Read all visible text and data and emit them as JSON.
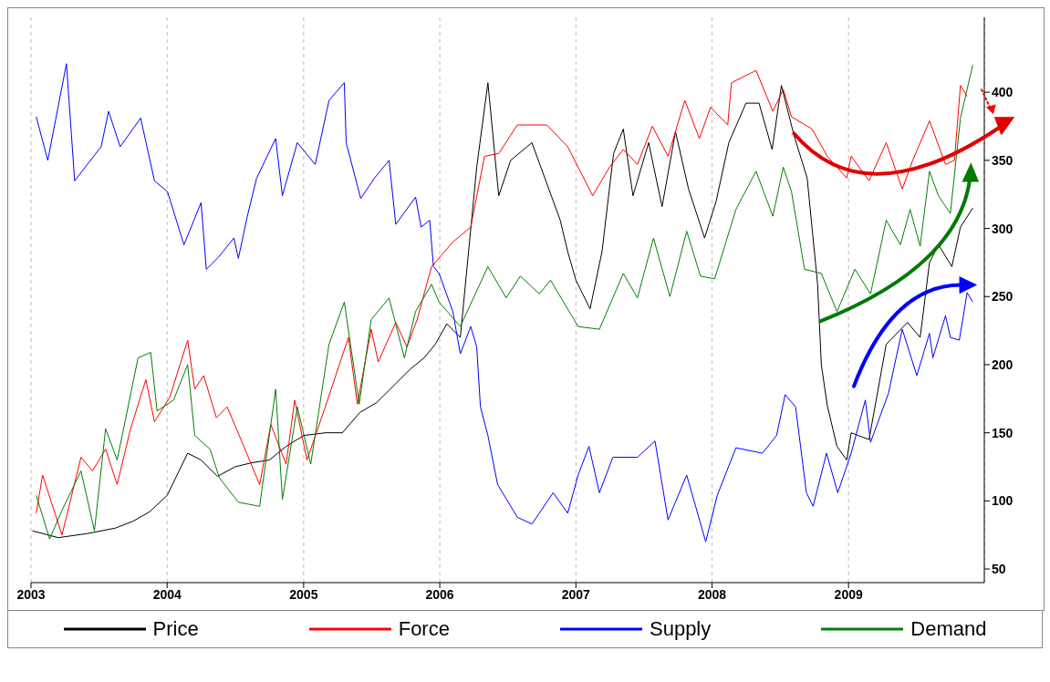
{
  "chart_data": {
    "type": "line",
    "xlim": [
      "2003-01-01",
      "2009-12-31"
    ],
    "xticks": [
      "2003",
      "2004",
      "2005",
      "2006",
      "2007",
      "2008",
      "2009"
    ],
    "ylim": [
      40,
      455
    ],
    "yticks": [
      50,
      100,
      150,
      200,
      250,
      300,
      350,
      400
    ],
    "grid": "x",
    "legend": "bottom",
    "line_style": "solid",
    "series": [
      {
        "name": "Price",
        "color": "#000000",
        "x": [
          "2003-01-05",
          "2003-03-15",
          "2003-06-01",
          "2003-08-15",
          "2003-10-01",
          "2003-11-15",
          "2004-01-01",
          "2004-02-25",
          "2004-04-01",
          "2004-05-15",
          "2004-07-01",
          "2004-08-15",
          "2004-10-01",
          "2004-11-15",
          "2005-01-01",
          "2005-03-01",
          "2005-04-15",
          "2005-06-01",
          "2005-07-15",
          "2005-09-01",
          "2005-10-15",
          "2005-11-20",
          "2005-12-20",
          "2006-01-20",
          "2006-02-25",
          "2006-04-10",
          "2006-05-10",
          "2006-06-08",
          "2006-07-10",
          "2006-09-05",
          "2006-11-20",
          "2006-12-10",
          "2007-01-01",
          "2007-02-08",
          "2007-03-12",
          "2007-04-12",
          "2007-05-08",
          "2007-06-03",
          "2007-07-15",
          "2007-08-20",
          "2007-09-25",
          "2007-10-30",
          "2007-12-12",
          "2008-01-12",
          "2008-02-15",
          "2008-04-01",
          "2008-05-06",
          "2008-06-10",
          "2008-07-05",
          "2008-08-08",
          "2008-09-12",
          "2008-10-10",
          "2008-10-20",
          "2008-11-05",
          "2008-12-01",
          "2008-12-27",
          "2009-01-08",
          "2009-02-25",
          "2009-04-12",
          "2009-06-08",
          "2009-07-12",
          "2009-08-06",
          "2009-08-30",
          "2009-10-05",
          "2009-10-28",
          "2009-11-30"
        ],
        "values": [
          78,
          73,
          76,
          80,
          85,
          92,
          104,
          135,
          130,
          118,
          125,
          128,
          130,
          140,
          148,
          150,
          150,
          165,
          172,
          185,
          197,
          205,
          215,
          230,
          220,
          345,
          407,
          324,
          350,
          363,
          306,
          283,
          262,
          241,
          283,
          355,
          373,
          324,
          363,
          316,
          371,
          329,
          293,
          320,
          363,
          392,
          392,
          358,
          405,
          368,
          337,
          259,
          200,
          170,
          140,
          130,
          150,
          145,
          215,
          231,
          220,
          275,
          288,
          272,
          301,
          315
        ]
      },
      {
        "name": "Force",
        "color": "#ff0000",
        "x": [
          "2003-01-15",
          "2003-02-01",
          "2003-03-25",
          "2003-05-15",
          "2003-06-15",
          "2003-07-20",
          "2003-08-20",
          "2003-09-25",
          "2003-11-05",
          "2003-11-28",
          "2004-01-08",
          "2004-02-25",
          "2004-03-15",
          "2004-04-08",
          "2004-05-12",
          "2004-06-10",
          "2004-07-20",
          "2004-09-05",
          "2004-10-05",
          "2004-11-15",
          "2004-12-08",
          "2005-01-10",
          "2005-02-28",
          "2005-05-01",
          "2005-05-25",
          "2005-07-01",
          "2005-07-20",
          "2005-09-05",
          "2005-10-05",
          "2005-11-01",
          "2005-12-10",
          "2006-02-05",
          "2006-03-25",
          "2006-05-01",
          "2006-06-08",
          "2006-07-28",
          "2006-10-15",
          "2006-12-10",
          "2007-02-15",
          "2007-04-01",
          "2007-05-08",
          "2007-06-15",
          "2007-07-25",
          "2007-09-05",
          "2007-10-20",
          "2007-11-28",
          "2007-12-28",
          "2008-02-12",
          "2008-02-22",
          "2008-04-28",
          "2008-06-12",
          "2008-07-10",
          "2008-08-01",
          "2008-09-25",
          "2008-11-05",
          "2008-12-27",
          "2009-01-08",
          "2009-02-25",
          "2009-04-12",
          "2009-05-25",
          "2009-06-22",
          "2009-08-06",
          "2009-09-18",
          "2009-10-12",
          "2009-10-28",
          "2009-11-15"
        ],
        "values": [
          91,
          119,
          75,
          132,
          122,
          138,
          112,
          153,
          189,
          158,
          176,
          218,
          182,
          192,
          161,
          169,
          143,
          112,
          156,
          127,
          174,
          130,
          169,
          220,
          171,
          226,
          202,
          231,
          213,
          233,
          272,
          290,
          301,
          353,
          355,
          376,
          376,
          360,
          324,
          345,
          358,
          347,
          375,
          353,
          394,
          366,
          389,
          376,
          407,
          416,
          386,
          402,
          382,
          373,
          353,
          337,
          353,
          335,
          363,
          329,
          350,
          379,
          347,
          350,
          405,
          397
        ]
      },
      {
        "name": "Supply",
        "color": "#0000ff",
        "x": [
          "2003-01-15",
          "2003-02-15",
          "2003-04-06",
          "2003-04-28",
          "2003-07-08",
          "2003-07-28",
          "2003-08-28",
          "2003-10-22",
          "2003-11-28",
          "2004-01-02",
          "2004-02-15",
          "2004-04-01",
          "2004-04-15",
          "2004-05-18",
          "2004-06-28",
          "2004-07-10",
          "2004-08-03",
          "2004-08-28",
          "2004-10-18",
          "2004-11-05",
          "2004-12-15",
          "2005-02-01",
          "2005-03-10",
          "2005-04-20",
          "2005-04-25",
          "2005-06-03",
          "2005-07-10",
          "2005-08-18",
          "2005-09-05",
          "2005-10-28",
          "2005-11-12",
          "2005-12-05",
          "2005-12-15",
          "2005-12-30",
          "2006-02-05",
          "2006-02-25",
          "2006-03-25",
          "2006-04-10",
          "2006-04-20",
          "2006-05-10",
          "2006-06-05",
          "2006-07-28",
          "2006-09-05",
          "2006-11-01",
          "2006-12-10",
          "2007-01-07",
          "2007-02-05",
          "2007-03-05",
          "2007-04-10",
          "2007-06-15",
          "2007-08-01",
          "2007-09-05",
          "2007-10-25",
          "2007-12-15",
          "2008-01-15",
          "2008-03-05",
          "2008-05-15",
          "2008-06-22",
          "2008-07-15",
          "2008-08-12",
          "2008-09-10",
          "2008-09-28",
          "2008-11-03",
          "2008-12-03",
          "2009-01-08",
          "2009-02-15",
          "2009-03-01",
          "2009-04-18",
          "2009-05-25",
          "2009-07-03",
          "2009-08-06",
          "2009-08-15",
          "2009-09-18",
          "2009-10-01",
          "2009-10-25",
          "2009-11-15",
          "2009-11-30"
        ],
        "values": [
          382,
          350,
          421,
          335,
          360,
          386,
          360,
          381,
          335,
          327,
          288,
          319,
          270,
          279,
          293,
          278,
          309,
          337,
          366,
          324,
          363,
          347,
          394,
          407,
          363,
          322,
          337,
          350,
          303,
          323,
          301,
          306,
          272,
          267,
          239,
          208,
          228,
          213,
          169,
          148,
          112,
          88,
          83,
          106,
          91,
          119,
          140,
          106,
          132,
          132,
          144,
          86,
          119,
          70,
          104,
          139,
          135,
          148,
          178,
          169,
          106,
          96,
          135,
          106,
          135,
          174,
          143,
          179,
          226,
          192,
          223,
          205,
          236,
          220,
          218,
          253,
          246
        ]
      },
      {
        "name": "Demand",
        "color": "#008000",
        "x": [
          "2003-01-15",
          "2003-02-20",
          "2003-03-25",
          "2003-05-15",
          "2003-06-20",
          "2003-07-20",
          "2003-08-20",
          "2003-10-15",
          "2003-11-18",
          "2003-12-05",
          "2004-01-18",
          "2004-02-25",
          "2004-03-15",
          "2004-04-25",
          "2004-05-20",
          "2004-07-10",
          "2004-09-05",
          "2004-10-18",
          "2004-11-05",
          "2004-12-15",
          "2005-01-20",
          "2005-03-10",
          "2005-04-20",
          "2005-05-30",
          "2005-07-01",
          "2005-08-18",
          "2005-09-28",
          "2005-10-28",
          "2005-12-10",
          "2005-12-30",
          "2006-02-25",
          "2006-05-10",
          "2006-06-28",
          "2006-08-05",
          "2006-09-25",
          "2006-10-25",
          "2007-01-07",
          "2007-03-05",
          "2007-05-08",
          "2007-06-15",
          "2007-07-28",
          "2007-09-10",
          "2007-10-25",
          "2007-12-01",
          "2008-01-08",
          "2008-03-05",
          "2008-04-28",
          "2008-06-12",
          "2008-07-10",
          "2008-08-01",
          "2008-09-05",
          "2008-10-20",
          "2008-12-01",
          "2009-01-18",
          "2009-03-01",
          "2009-04-12",
          "2009-05-20",
          "2009-06-15",
          "2009-07-12",
          "2009-08-06",
          "2009-08-30",
          "2009-10-01",
          "2009-10-28",
          "2009-11-30"
        ],
        "values": [
          104,
          72,
          93,
          122,
          78,
          153,
          130,
          205,
          209,
          166,
          174,
          200,
          148,
          138,
          117,
          99,
          96,
          182,
          101,
          169,
          127,
          215,
          246,
          171,
          233,
          249,
          205,
          239,
          259,
          246,
          228,
          272,
          249,
          265,
          252,
          262,
          228,
          226,
          267,
          249,
          293,
          250,
          298,
          265,
          263,
          314,
          342,
          309,
          345,
          327,
          270,
          267,
          239,
          270,
          252,
          306,
          288,
          314,
          287,
          342,
          324,
          311,
          381,
          420
        ]
      }
    ]
  }
}
